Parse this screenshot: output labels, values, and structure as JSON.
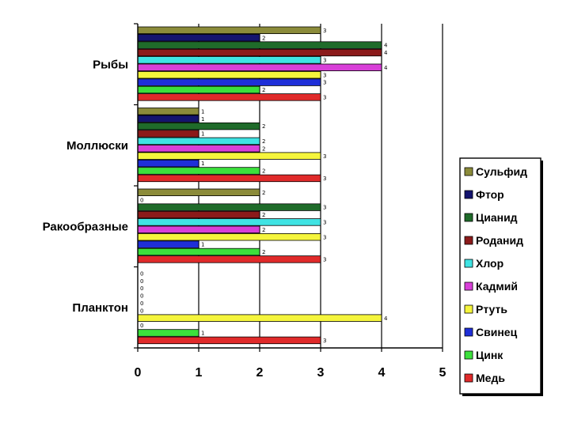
{
  "chart_data": {
    "type": "bar",
    "orientation": "horizontal",
    "title": "",
    "xlabel": "",
    "ylabel": "",
    "xlim": [
      0,
      5
    ],
    "x_ticks": [
      "0",
      "1",
      "2",
      "3",
      "4",
      "5"
    ],
    "grid": "vertical",
    "legend_position": "right",
    "categories": [
      "Рыбы",
      "Моллюски",
      "Ракообразные",
      "Планктон"
    ],
    "series": [
      {
        "name": "Сульфид",
        "color": "#8B8B3A",
        "values": [
          3,
          1,
          2,
          0
        ]
      },
      {
        "name": "Фтор",
        "color": "#14146E",
        "values": [
          2,
          1,
          0,
          0
        ]
      },
      {
        "name": "Цианид",
        "color": "#1F6B2A",
        "values": [
          4,
          2,
          3,
          0
        ]
      },
      {
        "name": "Роданид",
        "color": "#8B1A1A",
        "values": [
          4,
          1,
          2,
          0
        ]
      },
      {
        "name": "Хлор",
        "color": "#3FE3E3",
        "values": [
          3,
          2,
          3,
          0
        ]
      },
      {
        "name": "Кадмий",
        "color": "#D83FD8",
        "values": [
          4,
          2,
          2,
          0
        ]
      },
      {
        "name": "Ртуть",
        "color": "#F5F53C",
        "values": [
          3,
          3,
          3,
          4
        ]
      },
      {
        "name": "Свинец",
        "color": "#1F2FD8",
        "values": [
          3,
          1,
          1,
          0
        ]
      },
      {
        "name": "Цинк",
        "color": "#3CE03C",
        "values": [
          2,
          2,
          2,
          1
        ]
      },
      {
        "name": "Медь",
        "color": "#E02A2A",
        "values": [
          3,
          3,
          3,
          3
        ]
      }
    ]
  }
}
